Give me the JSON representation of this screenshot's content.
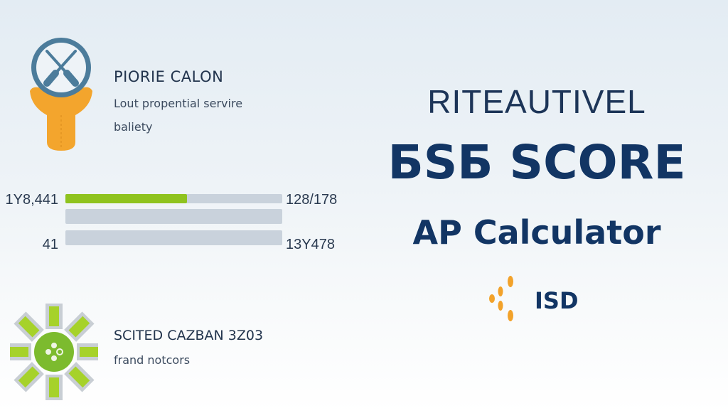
{
  "left_panel": {
    "feature1": {
      "icon": "crossed-tools-badge-icon",
      "title": "PIORIE CALON",
      "line1": "Lout propential servire",
      "line2": "baliety"
    },
    "progress_rows": [
      {
        "left_label": "1Y8,441",
        "right_label": "128/178",
        "progress": 0.56
      },
      {
        "left_label": "",
        "right_label": "",
        "progress": 0
      },
      {
        "left_label": "41",
        "right_label": "13Y478",
        "progress": 0
      }
    ],
    "feature2": {
      "icon": "green-gear-burst-icon",
      "title": "SCITED CAZBAN 3Z03",
      "subtitle": "frand notcors"
    }
  },
  "right_panel": {
    "overline": "RITEAUTIVEL",
    "headline": "БSБ SCORE",
    "subheadline": "AP Calculator",
    "brand": {
      "icon": "orange-dots-logo-icon",
      "label": "ISD"
    }
  },
  "colors": {
    "navy": "#123564",
    "accent_green": "#8fc31f",
    "accent_orange": "#f2a22a",
    "bar_track": "#c9d2dc"
  }
}
